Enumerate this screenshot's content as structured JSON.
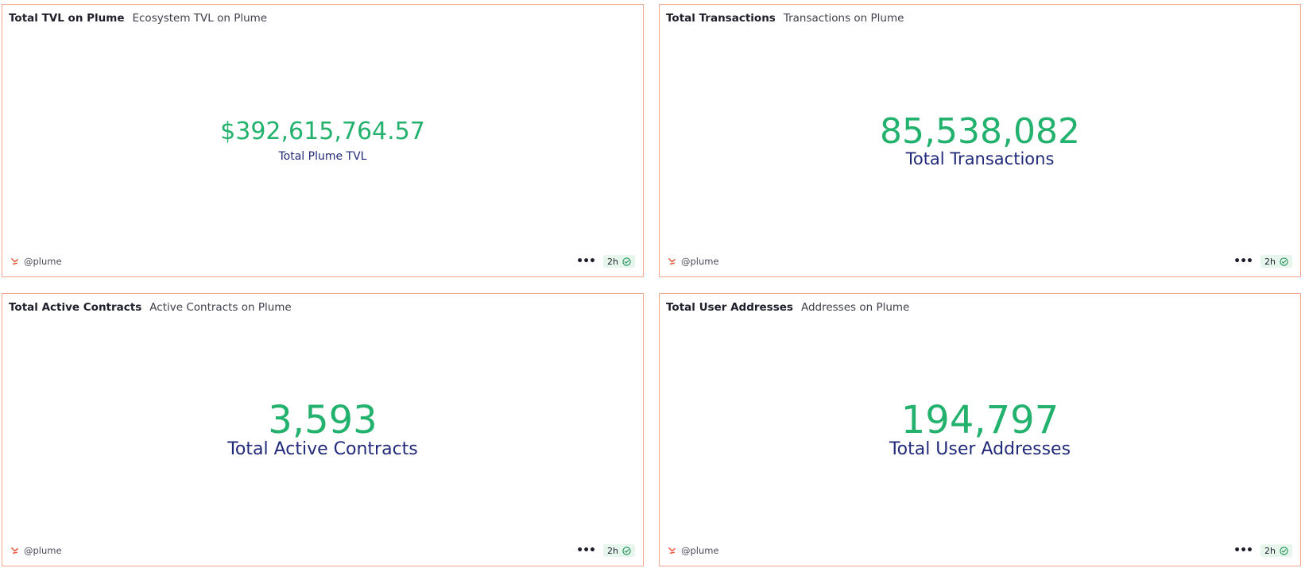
{
  "colors": {
    "border": "#f2a58f",
    "value": "#23b26d",
    "label": "#222a7a",
    "badge_bg": "#e6f6ec"
  },
  "cards": [
    {
      "title": "Total TVL on Plume",
      "subtitle": "Ecosystem TVL on Plume",
      "value": "$392,615,764.57",
      "label": "Total Plume TVL",
      "owner": "@plume",
      "refresh": "2h",
      "icons": [
        "avatar-icon",
        "more-icon",
        "check-circle-icon"
      ]
    },
    {
      "title": "Total Transactions",
      "subtitle": "Transactions on Plume",
      "value": "85,538,082",
      "label": "Total Transactions",
      "owner": "@plume",
      "refresh": "2h",
      "icons": [
        "avatar-icon",
        "more-icon",
        "check-circle-icon"
      ]
    },
    {
      "title": "Total Active Contracts",
      "subtitle": "Active Contracts on Plume",
      "value": "3,593",
      "label": "Total Active Contracts",
      "owner": "@plume",
      "refresh": "2h",
      "icons": [
        "avatar-icon",
        "more-icon",
        "check-circle-icon"
      ]
    },
    {
      "title": "Total User Addresses",
      "subtitle": "Addresses on Plume",
      "value": "194,797",
      "label": "Total User Addresses",
      "owner": "@plume",
      "refresh": "2h",
      "icons": [
        "avatar-icon",
        "more-icon",
        "check-circle-icon"
      ]
    }
  ]
}
